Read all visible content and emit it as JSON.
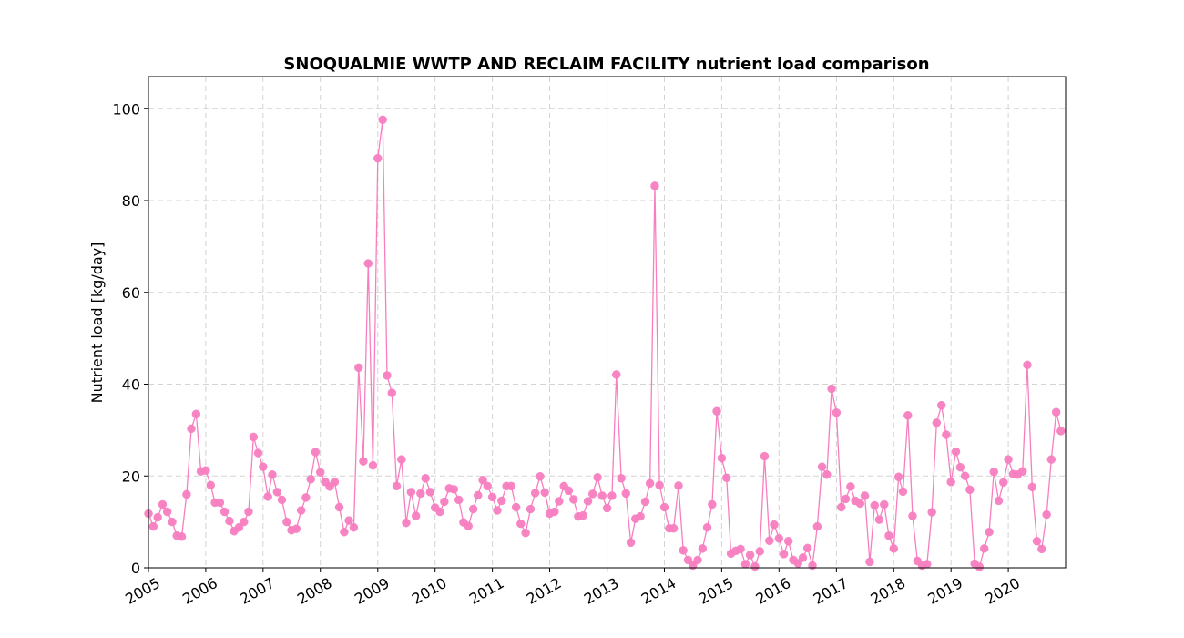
{
  "chart_data": {
    "type": "line",
    "title": "SNOQUALMIE WWTP AND RECLAIM FACILITY nutrient load comparison",
    "xlabel": "",
    "ylabel": "Nutrient load [kg/day]",
    "xlim": [
      "2005-01-01",
      "2020-12-31"
    ],
    "ylim": [
      0,
      107
    ],
    "x_ticks": [
      "2005",
      "2006",
      "2007",
      "2008",
      "2009",
      "2010",
      "2011",
      "2012",
      "2013",
      "2014",
      "2015",
      "2016",
      "2017",
      "2018",
      "2019",
      "2020"
    ],
    "y_ticks": [
      "0",
      "20",
      "40",
      "60",
      "80",
      "100"
    ],
    "grid": true,
    "color": "#f77fc0",
    "series": [
      {
        "x": [
          "2005-01",
          "2005-02",
          "2005-03",
          "2005-04",
          "2005-05",
          "2005-06",
          "2005-07",
          "2005-08",
          "2005-09",
          "2005-10",
          "2005-11",
          "2005-12",
          "2006-01",
          "2006-02",
          "2006-03",
          "2006-04",
          "2006-05",
          "2006-06",
          "2006-07",
          "2006-08",
          "2006-09",
          "2006-10",
          "2006-11",
          "2006-12",
          "2007-01",
          "2007-02",
          "2007-03",
          "2007-04",
          "2007-05",
          "2007-06",
          "2007-07",
          "2007-08",
          "2007-09",
          "2007-10",
          "2007-11",
          "2007-12",
          "2008-01",
          "2008-02",
          "2008-03",
          "2008-04",
          "2008-05",
          "2008-06",
          "2008-07",
          "2008-08",
          "2008-09",
          "2008-10",
          "2008-11",
          "2008-12",
          "2009-01",
          "2009-02",
          "2009-03",
          "2009-04",
          "2009-05",
          "2009-06",
          "2009-07",
          "2009-08",
          "2009-09",
          "2009-10",
          "2009-11",
          "2009-12",
          "2010-01",
          "2010-02",
          "2010-03",
          "2010-04",
          "2010-05",
          "2010-06",
          "2010-07",
          "2010-08",
          "2010-09",
          "2010-10",
          "2010-11",
          "2010-12",
          "2011-01",
          "2011-02",
          "2011-03",
          "2011-04",
          "2011-05",
          "2011-06",
          "2011-07",
          "2011-08",
          "2011-09",
          "2011-10",
          "2011-11",
          "2011-12",
          "2012-01",
          "2012-02",
          "2012-03",
          "2012-04",
          "2012-05",
          "2012-06",
          "2012-07",
          "2012-08",
          "2012-09",
          "2012-10",
          "2012-11",
          "2012-12",
          "2013-01",
          "2013-02",
          "2013-03",
          "2013-04",
          "2013-05",
          "2013-06",
          "2013-07",
          "2013-08",
          "2013-09",
          "2013-10",
          "2013-11",
          "2013-12",
          "2014-01",
          "2014-02",
          "2014-03",
          "2014-04",
          "2014-05",
          "2014-06",
          "2014-07",
          "2014-08",
          "2014-09",
          "2014-10",
          "2014-11",
          "2014-12",
          "2015-01",
          "2015-02",
          "2015-03",
          "2015-04",
          "2015-05",
          "2015-06",
          "2015-07",
          "2015-08",
          "2015-09",
          "2015-10",
          "2015-11",
          "2015-12",
          "2016-01",
          "2016-02",
          "2016-03",
          "2016-04",
          "2016-05",
          "2016-06",
          "2016-07",
          "2016-08",
          "2016-09",
          "2016-10",
          "2016-11",
          "2016-12",
          "2017-01",
          "2017-02",
          "2017-03",
          "2017-04",
          "2017-05",
          "2017-06",
          "2017-07",
          "2017-08",
          "2017-09",
          "2017-10",
          "2017-11",
          "2017-12",
          "2018-01",
          "2018-02",
          "2018-03",
          "2018-04",
          "2018-05",
          "2018-06",
          "2018-07",
          "2018-08",
          "2018-09",
          "2018-10",
          "2018-11",
          "2018-12",
          "2019-01",
          "2019-02",
          "2019-03",
          "2019-04",
          "2019-05",
          "2019-06",
          "2019-07",
          "2019-08",
          "2019-09",
          "2019-10",
          "2019-11",
          "2019-12",
          "2020-01",
          "2020-02",
          "2020-03",
          "2020-04",
          "2020-05",
          "2020-06",
          "2020-07",
          "2020-08",
          "2020-09",
          "2020-10",
          "2020-11",
          "2020-12"
        ],
        "values": [
          11.8,
          9,
          11,
          13.8,
          12.2,
          10,
          7,
          6.8,
          16,
          30.3,
          33.5,
          21,
          21.2,
          18,
          14.2,
          14.2,
          12.2,
          10.2,
          8,
          8.8,
          10,
          12.2,
          28.5,
          25,
          22,
          15.5,
          20.3,
          16.5,
          14.8,
          10,
          8.2,
          8.5,
          12.5,
          15.3,
          19.3,
          25.2,
          20.8,
          18.7,
          17.7,
          18.7,
          13.2,
          7.8,
          10.3,
          8.8,
          43.6,
          23.2,
          66.3,
          22.3,
          89.2,
          97.6,
          41.9,
          38.1,
          17.8,
          23.6,
          9.8,
          16.5,
          11.3,
          16.2,
          19.5,
          16.5,
          13.1,
          12.2,
          14.4,
          17.3,
          17.1,
          14.8,
          9.9,
          9.1,
          12.8,
          15.8,
          19.1,
          17.8,
          15.4,
          12.5,
          14.6,
          17.8,
          17.8,
          13.2,
          9.6,
          7.6,
          12.8,
          16.3,
          19.9,
          16.4,
          11.8,
          12.2,
          14.5,
          17.8,
          16.8,
          14.9,
          11.2,
          11.4,
          14.5,
          16.1,
          19.7,
          15.7,
          13,
          15.7,
          42.1,
          19.5,
          16.2,
          5.5,
          10.7,
          11.2,
          14.4,
          18.4,
          83.2,
          18,
          13.2,
          8.6,
          8.6,
          17.9,
          3.8,
          1.7,
          0.5,
          1.7,
          4.2,
          8.8,
          13.8,
          34.1,
          23.9,
          19.6,
          3.1,
          3.7,
          4.1,
          0.8,
          2.8,
          0.3,
          3.6,
          24.3,
          5.9,
          9.4,
          6.4,
          3,
          5.8,
          1.7,
          1,
          2.2,
          4.3,
          0.5,
          9,
          22,
          20.3,
          39,
          33.8,
          13.2,
          15,
          17.7,
          14.6,
          14,
          15.7,
          1.3,
          13.6,
          10.5,
          13.8,
          7,
          4.2,
          19.8,
          16.6,
          33.2,
          11.3,
          1.5,
          0.5,
          0.8,
          12.1,
          31.6,
          35.4,
          29,
          18.7,
          25.3,
          21.9,
          20,
          17,
          0.9,
          0.2,
          4.2,
          7.8,
          20.9,
          14.6,
          18.6,
          23.6,
          20.4,
          20.3,
          21,
          44.2,
          17.6,
          5.8,
          4.1,
          11.6,
          23.6,
          33.9,
          29.8
        ]
      }
    ]
  }
}
